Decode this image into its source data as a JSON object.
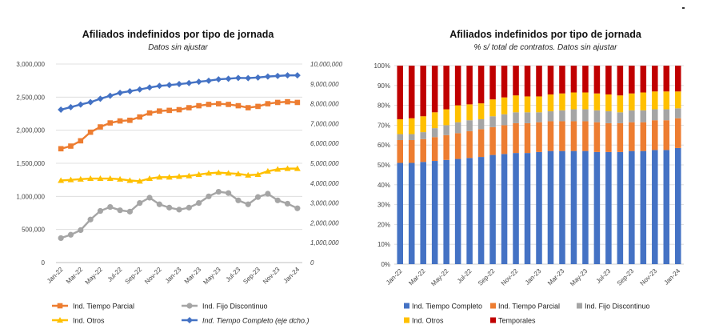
{
  "chart_data": [
    {
      "type": "line",
      "title": "Afiliados indefinidos por tipo de jornada",
      "subtitle": "Datos sin ajustar",
      "categories": [
        "Jan-22",
        "Feb-22",
        "Mar-22",
        "Apr-22",
        "May-22",
        "Jun-22",
        "Jul-22",
        "Aug-22",
        "Sep-22",
        "Oct-22",
        "Nov-22",
        "Dec-22",
        "Jan-23",
        "Feb-23",
        "Mar-23",
        "Apr-23",
        "May-23",
        "Jun-23",
        "Jul-23",
        "Aug-23",
        "Sep-23",
        "Oct-23",
        "Nov-23",
        "Dec-23",
        "Jan-24"
      ],
      "x_tick_labels": [
        "Jan-22",
        "Mar-22",
        "May-22",
        "Jul-22",
        "Sep-22",
        "Nov-22",
        "Jan-23",
        "Mar-23",
        "May-23",
        "Jul-23",
        "Sep-23",
        "Nov-23",
        "Jan-24"
      ],
      "y_left": {
        "lim": [
          0,
          3000000
        ],
        "ticks": [
          "0",
          "500,000",
          "1,000,000",
          "1,500,000",
          "2,000,000",
          "2,500,000",
          "3,000,000"
        ]
      },
      "y_right": {
        "lim": [
          0,
          10000000
        ],
        "ticks": [
          "0",
          "1,000,000",
          "2,000,000",
          "3,000,000",
          "4,000,000",
          "5,000,000",
          "6,000,000",
          "7,000,000",
          "8,000,000",
          "9,000,000",
          "10,000,000"
        ]
      },
      "grid": "horizontal",
      "legend_position": "bottom",
      "series": [
        {
          "name": "Ind. Tiempo Parcial",
          "axis": "left",
          "color": "#ED7D31",
          "marker": "square",
          "values": [
            1720000,
            1760000,
            1840000,
            1970000,
            2050000,
            2110000,
            2140000,
            2150000,
            2200000,
            2260000,
            2290000,
            2300000,
            2310000,
            2340000,
            2370000,
            2390000,
            2400000,
            2390000,
            2370000,
            2340000,
            2360000,
            2400000,
            2420000,
            2430000,
            2420000
          ]
        },
        {
          "name": "Ind. Fijo Discontinuo",
          "axis": "left",
          "color": "#A5A5A5",
          "marker": "circle",
          "values": [
            370000,
            420000,
            490000,
            650000,
            780000,
            840000,
            790000,
            770000,
            900000,
            980000,
            880000,
            830000,
            800000,
            830000,
            900000,
            1000000,
            1070000,
            1050000,
            940000,
            880000,
            990000,
            1040000,
            940000,
            890000,
            820000
          ]
        },
        {
          "name": "Ind. Otros",
          "axis": "left",
          "color": "#FFC000",
          "marker": "triangle",
          "values": [
            1240000,
            1250000,
            1260000,
            1270000,
            1270000,
            1270000,
            1260000,
            1240000,
            1230000,
            1270000,
            1290000,
            1290000,
            1300000,
            1310000,
            1330000,
            1350000,
            1360000,
            1350000,
            1340000,
            1320000,
            1330000,
            1380000,
            1410000,
            1420000,
            1420000
          ]
        },
        {
          "name": "Ind. Tiempo Completo (eje dcho.)",
          "axis": "right",
          "color": "#4472C4",
          "marker": "diamond",
          "values": [
            7700000,
            7830000,
            7960000,
            8080000,
            8250000,
            8400000,
            8550000,
            8630000,
            8720000,
            8820000,
            8900000,
            8940000,
            8990000,
            9040000,
            9110000,
            9160000,
            9230000,
            9260000,
            9300000,
            9290000,
            9320000,
            9370000,
            9400000,
            9430000,
            9430000
          ]
        }
      ]
    },
    {
      "type": "stacked_bar",
      "title": "Afiliados indefinidos por tipo de jornada",
      "subtitle": "% s/ total de contratos. Datos sin ajustar",
      "categories": [
        "Jan-22",
        "Feb-22",
        "Mar-22",
        "Apr-22",
        "May-22",
        "Jun-22",
        "Jul-22",
        "Aug-22",
        "Sep-22",
        "Oct-22",
        "Nov-22",
        "Dec-22",
        "Jan-23",
        "Feb-23",
        "Mar-23",
        "Apr-23",
        "May-23",
        "Jun-23",
        "Jul-23",
        "Aug-23",
        "Sep-23",
        "Oct-23",
        "Nov-23",
        "Dec-23",
        "Jan-24"
      ],
      "x_tick_labels": [
        "Jan-22",
        "Mar-22",
        "May-22",
        "Jul-22",
        "Sep-22",
        "Nov-22",
        "Jan-23",
        "Mar-23",
        "May-23",
        "Jul-23",
        "Sep-23",
        "Nov-23",
        "Jan-24"
      ],
      "ylim": [
        0,
        100
      ],
      "y_ticks": [
        "0%",
        "10%",
        "20%",
        "30%",
        "40%",
        "50%",
        "60%",
        "70%",
        "80%",
        "90%",
        "100%"
      ],
      "grid": "horizontal",
      "legend_position": "bottom",
      "series": [
        {
          "name": "Ind. Tiempo Completo",
          "color": "#4472C4",
          "values": [
            51,
            51,
            51.5,
            52,
            52.5,
            53,
            53.5,
            54,
            55,
            55.5,
            56,
            56,
            56.5,
            57,
            57,
            57,
            57,
            56.5,
            56.5,
            56.5,
            57,
            57,
            57.5,
            57.5,
            58.5
          ]
        },
        {
          "name": "Ind. Tiempo Parcial",
          "color": "#ED7D31",
          "values": [
            11.5,
            11.5,
            11.5,
            12,
            12.5,
            13,
            13.5,
            14,
            14,
            14.5,
            15,
            15,
            15,
            15,
            15,
            15,
            15,
            15,
            14.5,
            14.5,
            14.5,
            14.5,
            15,
            15,
            15
          ]
        },
        {
          "name": "Ind. Fijo Discontinuo",
          "color": "#A5A5A5",
          "values": [
            3,
            3,
            3.5,
            4.5,
            5,
            5.5,
            5.5,
            5,
            5.5,
            5.5,
            5.5,
            5.5,
            5,
            5,
            5.5,
            6,
            6,
            6,
            6,
            5.5,
            6,
            6,
            5.5,
            5.5,
            5
          ]
        },
        {
          "name": "Ind. Otros",
          "color": "#FFC000",
          "values": [
            7.5,
            8,
            8,
            8,
            8,
            8.5,
            8,
            8,
            8.5,
            8.5,
            8.5,
            8,
            8,
            8.5,
            8.5,
            8.5,
            8.5,
            8.5,
            8.5,
            8.5,
            8.5,
            9,
            9,
            9,
            8.5
          ]
        },
        {
          "name": "Temporales",
          "color": "#C00000",
          "values": [
            27,
            26.5,
            25.5,
            23.5,
            22,
            20,
            19.5,
            19,
            17,
            16,
            15,
            15.5,
            15.5,
            14.5,
            14,
            13.5,
            13.5,
            14,
            14.5,
            15,
            14,
            13.5,
            13,
            13,
            13
          ]
        }
      ]
    }
  ]
}
